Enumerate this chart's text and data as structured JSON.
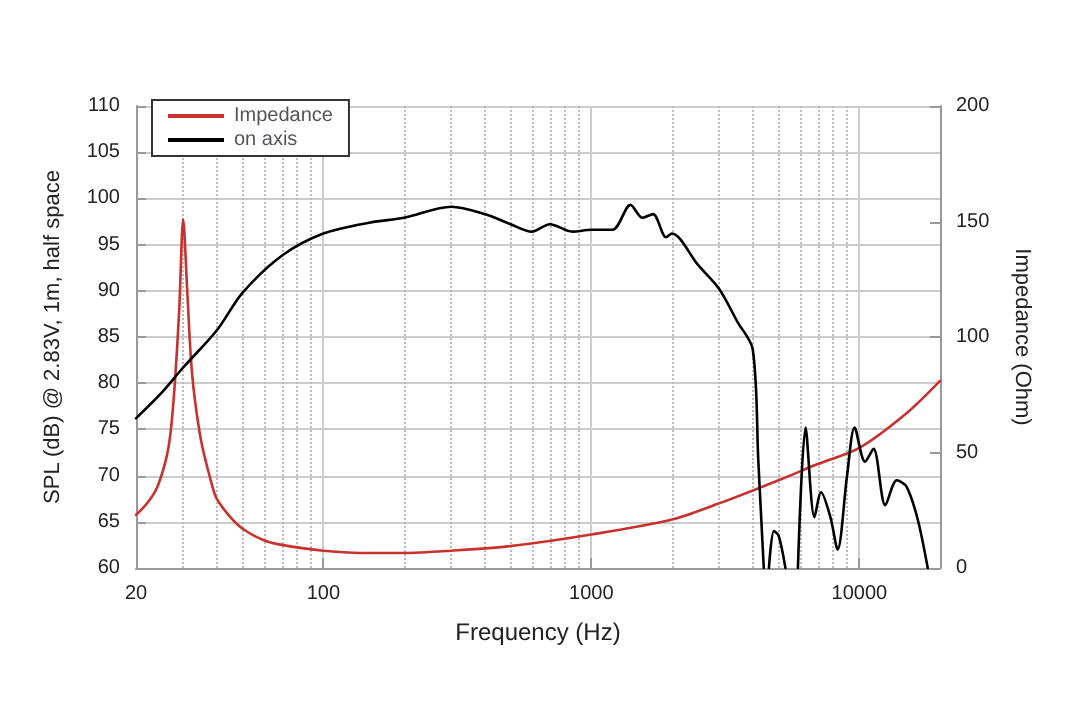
{
  "chart_data": {
    "type": "line",
    "xlabel": "Frequency (Hz)",
    "ylabel": "SPL (dB) @ 2.83V, 1m, half space",
    "y2label": "Impedance (Ohm)",
    "log": "x",
    "xlim": [
      20,
      20000
    ],
    "xticks": [
      20,
      100,
      1000,
      10000
    ],
    "ylim": [
      60,
      110
    ],
    "yticks": [
      60,
      65,
      70,
      75,
      80,
      85,
      90,
      95,
      100,
      105,
      110
    ],
    "y2lim": [
      0,
      200
    ],
    "y2ticks": [
      0,
      50,
      100,
      150,
      200
    ],
    "grid": true,
    "legend": "top left",
    "line_style": "solid",
    "marker": "none",
    "series": [
      {
        "name": "Impedance",
        "color": "#c8312e",
        "axis": "y2",
        "x": [
          20,
          22,
          24,
          26,
          27,
          28,
          29,
          30,
          31,
          32,
          33,
          35,
          38,
          40,
          45,
          50,
          60,
          70,
          100,
          150,
          200,
          300,
          500,
          1000,
          2000,
          3000,
          5000,
          7000,
          10000,
          15000,
          20000
        ],
        "values": [
          23,
          28,
          35,
          48,
          60,
          82,
          112,
          151,
          122,
          92,
          75,
          55,
          38,
          30,
          22,
          17,
          12,
          10,
          7.5,
          6.5,
          6.5,
          7.5,
          9.5,
          14.5,
          21,
          28,
          38,
          45,
          52,
          67,
          81
        ]
      },
      {
        "name": "on axis",
        "color": "#000000",
        "x": [
          20,
          25,
          30,
          40,
          50,
          70,
          100,
          150,
          200,
          300,
          400,
          500,
          600,
          700,
          850,
          1000,
          1200,
          1400,
          1550,
          1700,
          1900,
          2000,
          2500,
          3000,
          3500,
          4000,
          4200,
          4400,
          4500,
          4600,
          4800,
          5000,
          5300,
          5600,
          5900,
          6300,
          6800,
          7200,
          7800,
          8300,
          9000,
          9600,
          10500,
          11300,
          12500,
          13800,
          15000,
          16500,
          18000
        ],
        "values": [
          76.2,
          79,
          81.7,
          85.7,
          89.8,
          93.8,
          96.2,
          97.4,
          97.9,
          99.1,
          98.3,
          97.2,
          96.4,
          97.2,
          96.4,
          96.6,
          96.6,
          99.3,
          97.9,
          98.3,
          95.8,
          96.2,
          92.8,
          90.2,
          86.7,
          83.7,
          71.5,
          60,
          null,
          60,
          64,
          63.5,
          60,
          null,
          60,
          75.2,
          65.5,
          68.2,
          65.5,
          62,
          70,
          75.2,
          71.5,
          72.9,
          66.8,
          69.5,
          68.8,
          65.3,
          60
        ]
      }
    ]
  }
}
